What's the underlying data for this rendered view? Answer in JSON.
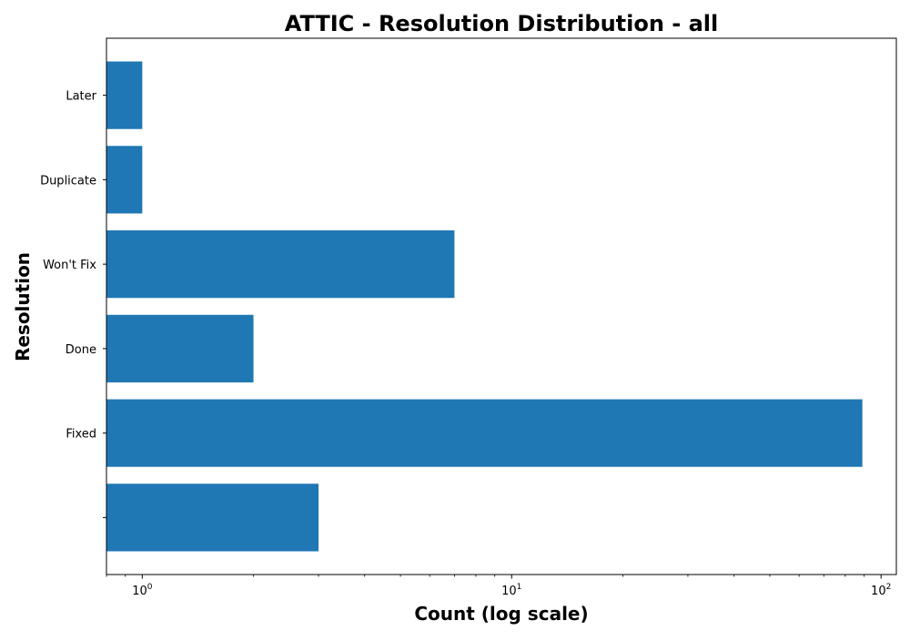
{
  "chart_data": {
    "type": "bar",
    "orientation": "horizontal",
    "title": "ATTIC - Resolution Distribution - all",
    "xlabel": "Count (log scale)",
    "ylabel": "Resolution",
    "x_scale": "log",
    "xlim": [
      0.8,
      110
    ],
    "x_ticks": [
      {
        "value": 1,
        "base": "10",
        "exp": "0"
      },
      {
        "value": 10,
        "base": "10",
        "exp": "1"
      },
      {
        "value": 100,
        "base": "10",
        "exp": "2"
      }
    ],
    "categories": [
      "",
      "Fixed",
      "Done",
      "Won't Fix",
      "Duplicate",
      "Later"
    ],
    "values": [
      3,
      89,
      2,
      7,
      1,
      1
    ],
    "bar_color": "#1f77b4",
    "grid": false,
    "legend": "none"
  }
}
